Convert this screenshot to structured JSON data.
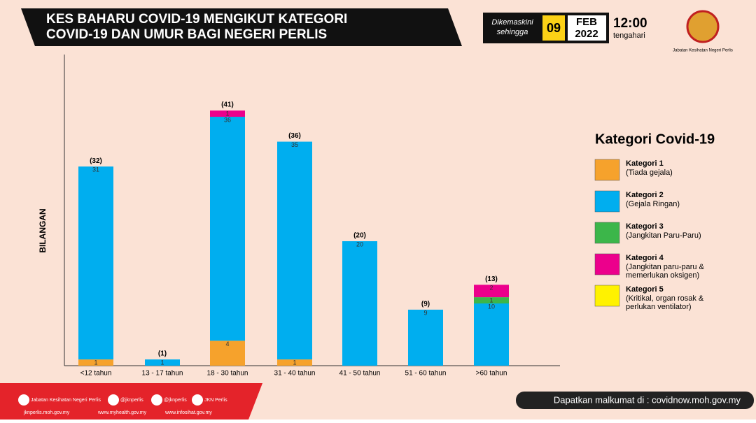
{
  "header": {
    "title_lines": [
      "KES BAHARU COVID-19 MENGIKUT KATEGORI",
      "COVID-19 DAN UMUR BAGI NEGERI PERLIS"
    ],
    "updated_lines": [
      "Dikemaskini",
      "sehingga"
    ],
    "day": "09",
    "month": "FEB",
    "year": "2022",
    "time": "12:00",
    "time_note": "tengahari",
    "logo_text": "Jabatan Kesihatan Negeri Perlis"
  },
  "chart_data": {
    "type": "stacked_bar",
    "y_label": "BILANGAN",
    "categories": [
      "<12 tahun",
      "13 - 17 tahun",
      "18 - 30 tahun",
      "31 - 40 tahun",
      "41 - 50 tahun",
      "51 - 60 tahun",
      ">60 tahun"
    ],
    "series": [
      {
        "name": "Kategori 1",
        "description_lines": [
          "(Tiada gejala)"
        ],
        "color": "#f6a22c",
        "values": [
          1,
          null,
          4,
          1,
          null,
          null,
          null
        ]
      },
      {
        "name": "Kategori 2",
        "description_lines": [
          "(Gejala Ringan)"
        ],
        "color": "#00aeef",
        "values": [
          31,
          1,
          36,
          35,
          20,
          9,
          10
        ]
      },
      {
        "name": "Kategori 3",
        "description_lines": [
          "(Jangkitan Paru-Paru)"
        ],
        "color": "#3cb64a",
        "values": [
          null,
          null,
          null,
          null,
          null,
          null,
          1
        ]
      },
      {
        "name": "Kategori 4",
        "description_lines": [
          "(Jangkitan paru-paru &",
          "memerlukan oksigen)"
        ],
        "color": "#ec008c",
        "values": [
          null,
          null,
          1,
          null,
          null,
          null,
          2
        ]
      },
      {
        "name": "Kategori 5",
        "description_lines": [
          "(Kritikal, organ rosak &",
          "perlukan ventilator)"
        ],
        "color": "#fff200",
        "values": [
          null,
          null,
          null,
          null,
          null,
          null,
          null
        ]
      }
    ],
    "totals": [
      32,
      1,
      41,
      36,
      20,
      9,
      13
    ],
    "total_labels": [
      "(32)",
      "(1)",
      "(41)",
      "(36)",
      "(20)",
      "(9)",
      "(13)"
    ],
    "ylim": [
      0,
      50
    ],
    "legend_title": "Kategori Covid-19"
  },
  "footer": {
    "social": [
      "Jabatan Kesihatan Negeri Perlis",
      "@jknperlis",
      "@jknperlis",
      "JKN Perlis"
    ],
    "links": [
      "jknperlis.moh.gov.my",
      "www.myhealth.gov.my",
      "www.infosihat.gov.my"
    ],
    "info": "Dapatkan malkumat di : covidnow.moh.gov.my"
  }
}
